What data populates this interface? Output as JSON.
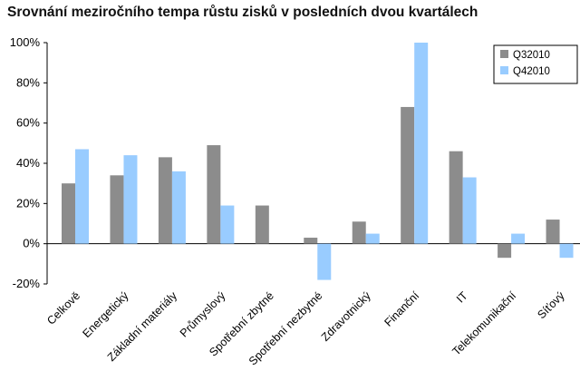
{
  "chart_data": {
    "type": "bar",
    "title": "Srovnání meziročního tempa růstu zisků v posledních dvou kvartálech",
    "xlabel": "",
    "ylabel": "",
    "ylim": [
      -20,
      100
    ],
    "yticks": [
      "100%",
      "80%",
      "60%",
      "40%",
      "20%",
      "0%",
      "-20%"
    ],
    "ytick_values": [
      100,
      80,
      60,
      40,
      20,
      0,
      -20
    ],
    "categories": [
      "Celkově",
      "Energetický",
      "Základní materiály",
      "Průmyslový",
      "Spotřební zbytné",
      "Spotřební nezbytné",
      "Zdravotnický",
      "Finanční",
      "IT",
      "Telekomunikační",
      "Síťový"
    ],
    "series": [
      {
        "name": "Q32010",
        "color": "#8c8c8c",
        "values": [
          30,
          34,
          43,
          49,
          19,
          3,
          11,
          68,
          46,
          -7,
          12
        ]
      },
      {
        "name": "Q42010",
        "color": "#99ccff",
        "values": [
          47,
          44,
          36,
          19,
          null,
          -18,
          5,
          100,
          33,
          5,
          -7
        ]
      }
    ],
    "legend": "top-right",
    "grid": false
  }
}
